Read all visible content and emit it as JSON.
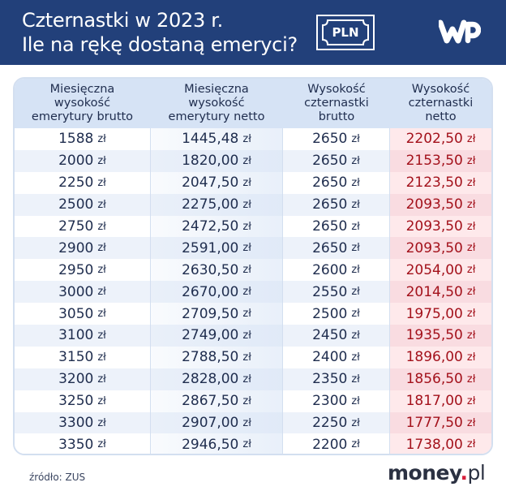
{
  "header": {
    "title_line1": "Czternastki w 2023 r.",
    "title_line2": "Ile na rękę dostaną emeryci?",
    "badge_text": "PLN",
    "logo": "WP",
    "background_color": "#22407a"
  },
  "table": {
    "currency": "zł",
    "columns": [
      "Miesięczna wysokość emerytury brutto",
      "Miesięczna wysokość emerytury netto",
      "Wysokość czternastki brutto",
      "Wysokość czternastki netto"
    ],
    "column_lines": [
      [
        "Miesięczna",
        "wysokość",
        "emerytury brutto"
      ],
      [
        "Miesięczna",
        "wysokość",
        "emerytury netto"
      ],
      [
        "Wysokość",
        "czternastki",
        "brutto"
      ],
      [
        "Wysokość",
        "czternastki",
        "netto"
      ]
    ],
    "rows": [
      [
        "1588",
        "1445,48",
        "2650",
        "2202,50"
      ],
      [
        "2000",
        "1820,00",
        "2650",
        "2153,50"
      ],
      [
        "2250",
        "2047,50",
        "2650",
        "2123,50"
      ],
      [
        "2500",
        "2275,00",
        "2650",
        "2093,50"
      ],
      [
        "2750",
        "2472,50",
        "2650",
        "2093,50"
      ],
      [
        "2900",
        "2591,00",
        "2650",
        "2093,50"
      ],
      [
        "2950",
        "2630,50",
        "2600",
        "2054,00"
      ],
      [
        "3000",
        "2670,00",
        "2550",
        "2014,50"
      ],
      [
        "3050",
        "2709,50",
        "2500",
        "1975,00"
      ],
      [
        "3100",
        "2749,00",
        "2450",
        "1935,50"
      ],
      [
        "3150",
        "2788,50",
        "2400",
        "1896,00"
      ],
      [
        "3200",
        "2828,00",
        "2350",
        "1856,50"
      ],
      [
        "3250",
        "2867,50",
        "2300",
        "1817,00"
      ],
      [
        "3300",
        "2907,00",
        "2250",
        "1777,50"
      ],
      [
        "3350",
        "2946,50",
        "2200",
        "1738,00"
      ]
    ],
    "accent_color": "#a3111b"
  },
  "footer": {
    "source": "źródło: ZUS",
    "brand_main": "money",
    "brand_dot": ".",
    "brand_tld": "pl"
  }
}
